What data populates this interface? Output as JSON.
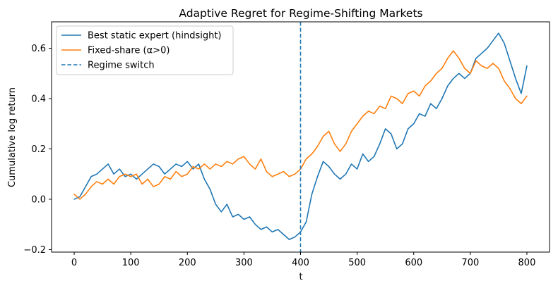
{
  "chart_data": {
    "type": "line",
    "title": "Adaptive Regret for Regime-Shifting Markets",
    "xlabel": "t",
    "ylabel": "Cumulative log return",
    "xlim": [
      -40,
      840
    ],
    "ylim": [
      -0.21,
      0.705
    ],
    "xticks": [
      0,
      100,
      200,
      300,
      400,
      500,
      600,
      700,
      800
    ],
    "yticks": [
      -0.2,
      0.0,
      0.2,
      0.4,
      0.6
    ],
    "ytick_labels": [
      "−0.2",
      "0.0",
      "0.2",
      "0.4",
      "0.6"
    ],
    "grid": false,
    "legend_position": "upper-left",
    "series": [
      {
        "name": "Best static expert (hindsight)",
        "color": "#1f77b4",
        "style": "solid",
        "x": [
          0,
          10,
          20,
          30,
          40,
          50,
          60,
          70,
          80,
          90,
          100,
          110,
          120,
          130,
          140,
          150,
          160,
          170,
          180,
          190,
          200,
          210,
          220,
          230,
          240,
          250,
          260,
          270,
          280,
          290,
          300,
          310,
          320,
          330,
          340,
          350,
          360,
          370,
          380,
          390,
          400,
          410,
          420,
          430,
          440,
          450,
          460,
          470,
          480,
          490,
          500,
          510,
          520,
          530,
          540,
          550,
          560,
          570,
          580,
          590,
          600,
          610,
          620,
          630,
          640,
          650,
          660,
          670,
          680,
          690,
          700,
          710,
          720,
          730,
          740,
          750,
          760,
          770,
          780,
          790,
          800
        ],
        "y": [
          0.0,
          0.01,
          0.05,
          0.09,
          0.1,
          0.12,
          0.14,
          0.1,
          0.12,
          0.09,
          0.1,
          0.08,
          0.1,
          0.12,
          0.14,
          0.13,
          0.1,
          0.12,
          0.14,
          0.13,
          0.15,
          0.12,
          0.14,
          0.08,
          0.04,
          -0.02,
          -0.05,
          -0.02,
          -0.07,
          -0.06,
          -0.08,
          -0.07,
          -0.1,
          -0.12,
          -0.11,
          -0.13,
          -0.12,
          -0.14,
          -0.16,
          -0.15,
          -0.13,
          -0.09,
          0.02,
          0.09,
          0.15,
          0.13,
          0.1,
          0.08,
          0.1,
          0.14,
          0.12,
          0.18,
          0.15,
          0.17,
          0.22,
          0.28,
          0.26,
          0.2,
          0.22,
          0.28,
          0.3,
          0.34,
          0.33,
          0.38,
          0.36,
          0.4,
          0.45,
          0.48,
          0.5,
          0.48,
          0.5,
          0.56,
          0.58,
          0.6,
          0.63,
          0.66,
          0.62,
          0.55,
          0.48,
          0.42,
          0.53
        ]
      },
      {
        "name": "Fixed-share (α>0)",
        "color": "#ff7f0e",
        "style": "solid",
        "x": [
          0,
          10,
          20,
          30,
          40,
          50,
          60,
          70,
          80,
          90,
          100,
          110,
          120,
          130,
          140,
          150,
          160,
          170,
          180,
          190,
          200,
          210,
          220,
          230,
          240,
          250,
          260,
          270,
          280,
          290,
          300,
          310,
          320,
          330,
          340,
          350,
          360,
          370,
          380,
          390,
          400,
          410,
          420,
          430,
          440,
          450,
          460,
          470,
          480,
          490,
          500,
          510,
          520,
          530,
          540,
          550,
          560,
          570,
          580,
          590,
          600,
          610,
          620,
          630,
          640,
          650,
          660,
          670,
          680,
          690,
          700,
          710,
          720,
          730,
          740,
          750,
          760,
          770,
          780,
          790,
          800
        ],
        "y": [
          0.02,
          0.0,
          0.02,
          0.05,
          0.07,
          0.06,
          0.08,
          0.06,
          0.09,
          0.1,
          0.09,
          0.1,
          0.06,
          0.08,
          0.05,
          0.06,
          0.09,
          0.08,
          0.11,
          0.09,
          0.1,
          0.13,
          0.12,
          0.14,
          0.12,
          0.14,
          0.13,
          0.15,
          0.14,
          0.16,
          0.17,
          0.14,
          0.12,
          0.16,
          0.11,
          0.09,
          0.1,
          0.11,
          0.09,
          0.1,
          0.12,
          0.16,
          0.18,
          0.21,
          0.25,
          0.27,
          0.22,
          0.19,
          0.22,
          0.27,
          0.3,
          0.33,
          0.35,
          0.34,
          0.37,
          0.36,
          0.41,
          0.4,
          0.38,
          0.42,
          0.43,
          0.41,
          0.45,
          0.47,
          0.5,
          0.52,
          0.56,
          0.59,
          0.56,
          0.52,
          0.5,
          0.55,
          0.53,
          0.52,
          0.54,
          0.52,
          0.47,
          0.44,
          0.4,
          0.38,
          0.41
        ]
      }
    ],
    "vlines": [
      {
        "name": "Regime switch",
        "x": 400,
        "color": "#1f77b4",
        "style": "dashed"
      }
    ]
  }
}
